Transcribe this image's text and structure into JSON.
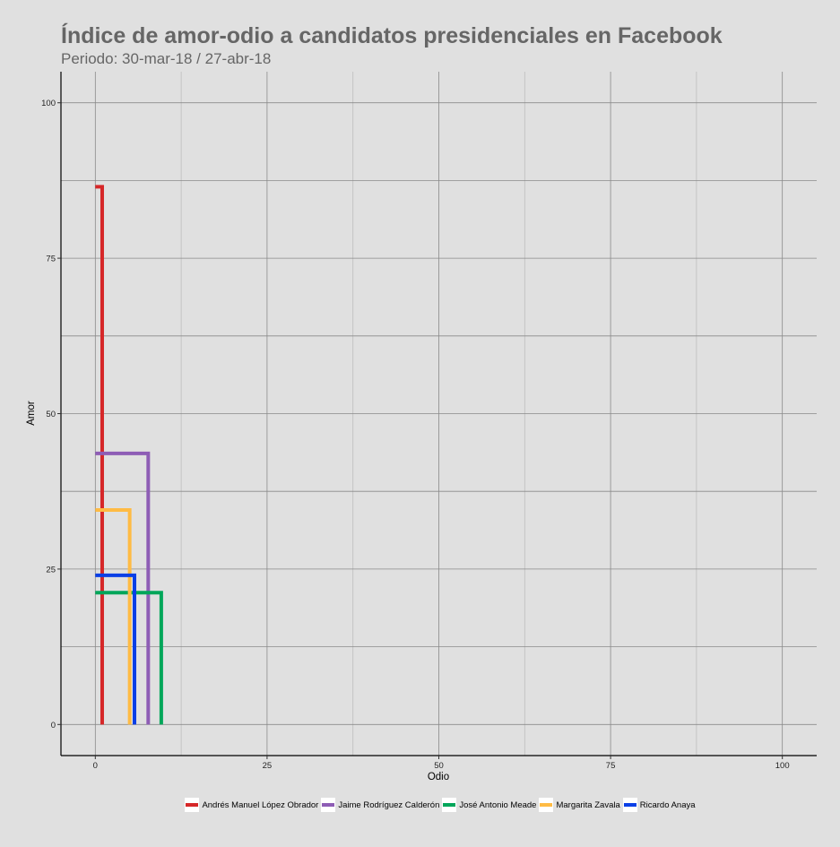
{
  "chart_data": {
    "type": "line",
    "title": "Índice de amor-odio a candidatos presidenciales en Facebook",
    "subtitle": "Periodo: 30-mar-18 / 27-abr-18",
    "xlabel": "Odio",
    "ylabel": "Amor",
    "xlim": [
      -5,
      105
    ],
    "ylim": [
      -5,
      105
    ],
    "xticks": [
      0,
      25,
      50,
      75,
      100
    ],
    "yticks": [
      0,
      25,
      50,
      75,
      100
    ],
    "grid": true,
    "legend_position": "bottom",
    "series": [
      {
        "name": "Andrés Manuel López Obrador",
        "color": "#d62728",
        "odio": 1.0,
        "amor": 86.5
      },
      {
        "name": "Jaime Rodríguez Calderón",
        "color": "#8e5db5",
        "odio": 7.7,
        "amor": 43.6
      },
      {
        "name": "José Antonio Meade",
        "color": "#00a65a",
        "odio": 9.6,
        "amor": 21.2
      },
      {
        "name": "Margarita Zavala",
        "color": "#ffbb44",
        "odio": 5.0,
        "amor": 34.5
      },
      {
        "name": "Ricardo Anaya",
        "color": "#0a3fe6",
        "odio": 5.7,
        "amor": 24.0
      }
    ]
  }
}
